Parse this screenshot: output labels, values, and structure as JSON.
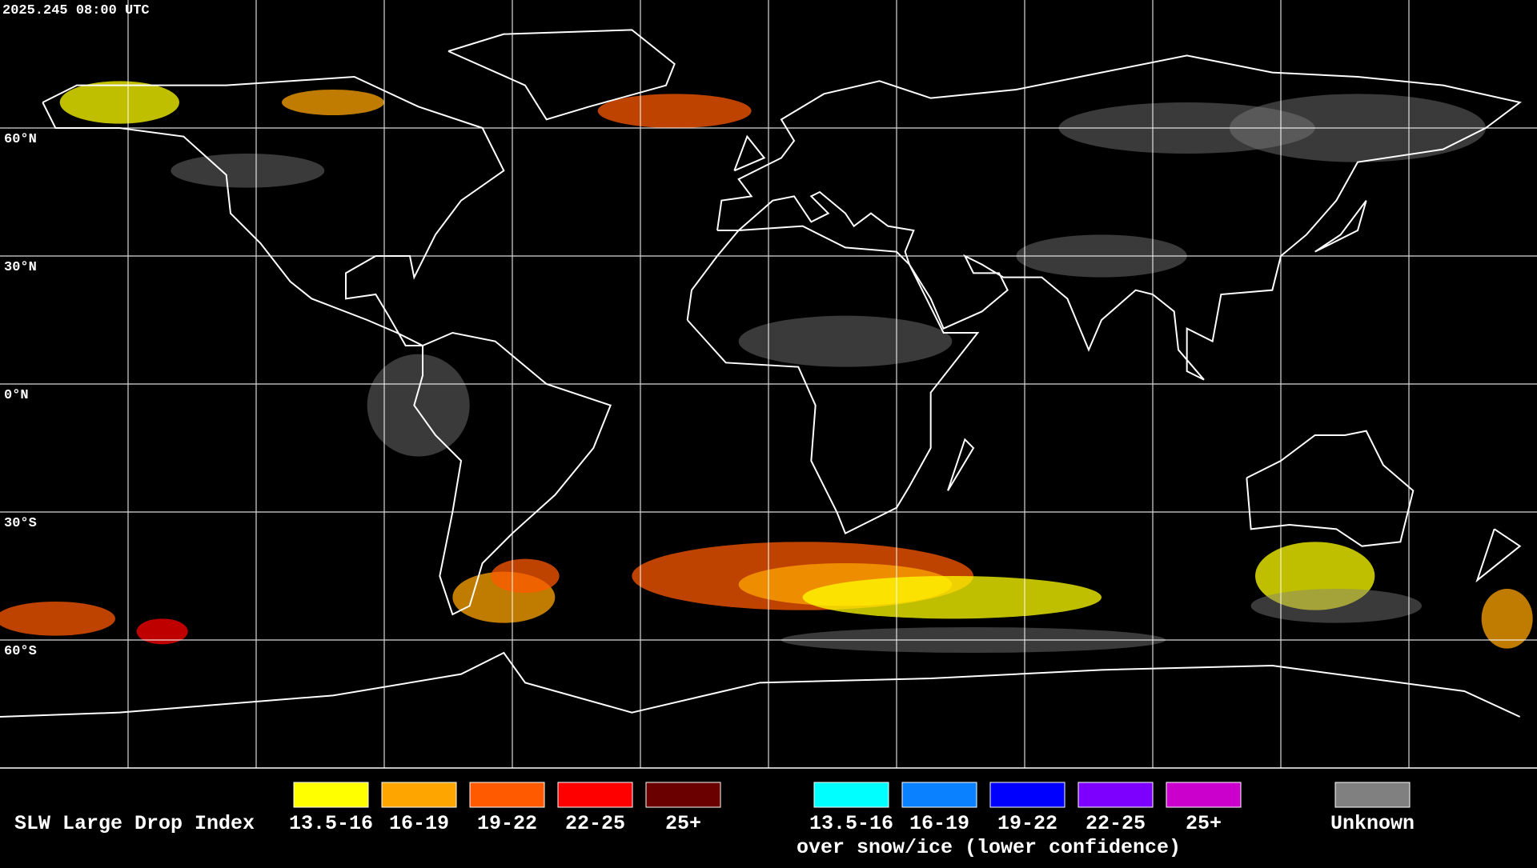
{
  "header": {
    "timestamp": "2025.245 08:00 UTC"
  },
  "map": {
    "latitude_labels": [
      "60°N",
      "30°N",
      "0°N",
      "30°S",
      "60°S"
    ]
  },
  "legend": {
    "title": "SLW Large Drop Index",
    "main_items": [
      {
        "label": "13.5-16",
        "color": "#ffff00"
      },
      {
        "label": "16-19",
        "color": "#ffa500"
      },
      {
        "label": "19-22",
        "color": "#ff5a00"
      },
      {
        "label": "22-25",
        "color": "#ff0000"
      },
      {
        "label": "25+",
        "color": "#6b0000"
      }
    ],
    "snow_items": [
      {
        "label": "13.5-16",
        "color": "#00ffff"
      },
      {
        "label": "16-19",
        "color": "#0a82ff"
      },
      {
        "label": "19-22",
        "color": "#0000ff"
      },
      {
        "label": "22-25",
        "color": "#7d00ff"
      },
      {
        "label": "25+",
        "color": "#cc00cc"
      }
    ],
    "snow_caption": "over snow/ice (lower confidence)",
    "unknown": {
      "label": "Unknown",
      "color": "#808080"
    }
  }
}
